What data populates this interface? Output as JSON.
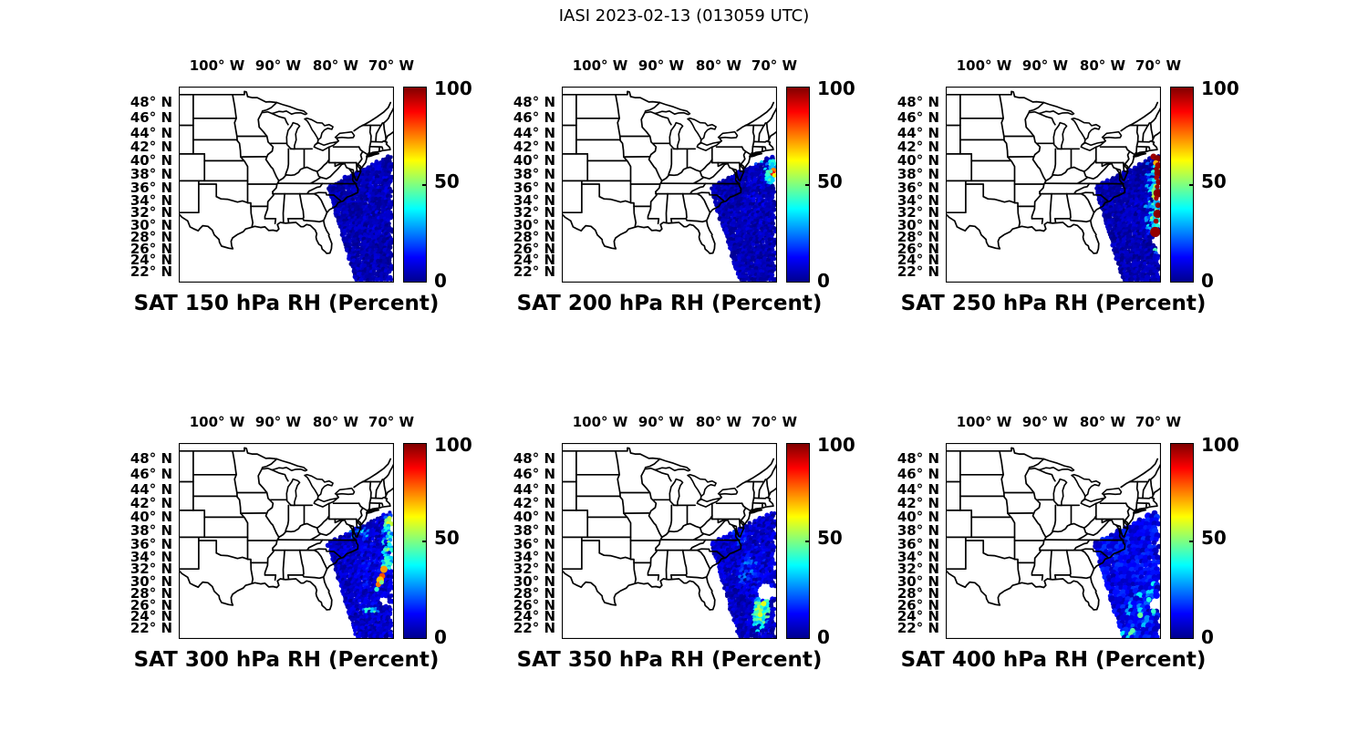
{
  "figure_title": "IASI 2023-02-13 (013059 UTC)",
  "chart_data": {
    "type": "scatter",
    "title": "IASI 2023-02-13 (013059 UTC)",
    "satellite": "IASI",
    "date": "2023-02-13",
    "time_utc": "013059 UTC",
    "variable": "RH",
    "units": "Percent",
    "colormap": "jet",
    "legend_position": "right-colorbar-per-panel",
    "grid": false,
    "colorbar": {
      "min": 0,
      "max": 100,
      "ticks": [
        100,
        50,
        0
      ],
      "tick_labels": [
        "100",
        "50",
        "0"
      ]
    },
    "map": {
      "lon_min": -106.5,
      "lon_max": -69.4,
      "lat_min": 20,
      "lat_max": 50,
      "lon_ticks": [
        -100,
        -90,
        -80,
        -70
      ],
      "lon_tick_labels": [
        "100° W",
        "90° W",
        "80° W",
        "70° W"
      ],
      "lat_ticks": [
        48,
        46,
        44,
        42,
        40,
        38,
        36,
        34,
        32,
        30,
        28,
        26,
        24,
        22
      ],
      "lat_tick_labels": [
        "48° N",
        "46° N",
        "44° N",
        "42° N",
        "40° N",
        "38° N",
        "36° N",
        "34° N",
        "32° N",
        "30° N",
        "28° N",
        "26° N",
        "24° N",
        "22° N"
      ]
    },
    "swath_corners_lonlat": [
      [
        -80.6,
        36.1
      ],
      [
        -69.6,
        40.9
      ],
      [
        -69.7,
        20.0
      ],
      [
        -75.6,
        20.0
      ]
    ],
    "panels": [
      {
        "level_hPa": 150,
        "title": "SAT 150 hPa RH (Percent)",
        "base_range": [
          1,
          9
        ],
        "dot_pitch": 3.2,
        "dot_radius": 2.3,
        "seed": 101,
        "patches": [
          [
            -72.5,
            33,
            2.6,
            6.5,
            6,
            14,
            0.3
          ],
          [
            -70.3,
            37.8,
            0.9,
            0.9,
            8,
            18,
            0.35
          ]
        ],
        "big_dots": [],
        "holes": []
      },
      {
        "level_hPa": 200,
        "title": "SAT 200 hPa RH (Percent)",
        "base_range": [
          1,
          9
        ],
        "dot_pitch": 3.2,
        "dot_radius": 2.3,
        "seed": 102,
        "patches": [
          [
            -70.2,
            38.2,
            1.15,
            1.9,
            28,
            52,
            0.85
          ],
          [
            -70.0,
            38.1,
            0.5,
            0.8,
            55,
            88,
            0.9
          ],
          [
            -71.8,
            39.8,
            1.4,
            0.6,
            18,
            38,
            0.4
          ],
          [
            -73.0,
            33,
            2.6,
            6,
            6,
            13,
            0.3
          ]
        ],
        "big_dots": [
          [
            -69.9,
            38.55,
            3.2,
            75
          ],
          [
            -70.05,
            38.15,
            2.8,
            88
          ],
          [
            -69.75,
            37.85,
            2.4,
            62
          ],
          [
            -70.35,
            38.4,
            2.0,
            45
          ]
        ],
        "holes": []
      },
      {
        "level_hPa": 250,
        "title": "SAT 250 hPa RH (Percent)",
        "base_range": [
          1,
          9
        ],
        "dot_pitch": 3.2,
        "dot_radius": 2.3,
        "seed": 103,
        "patches": [
          [
            -70.1,
            33,
            0.8,
            8.5,
            25,
            65,
            0.75
          ],
          [
            -71.1,
            33.5,
            0.9,
            7.5,
            16,
            42,
            0.45
          ],
          [
            -73.0,
            31,
            2.2,
            5.5,
            5,
            12,
            0.3
          ]
        ],
        "big_dots": [
          [
            -70.6,
            40.6,
            3.4,
            97
          ],
          [
            -69.9,
            40.3,
            4.0,
            99
          ],
          [
            -70.2,
            39.7,
            3.0,
            70
          ],
          [
            -69.75,
            39.3,
            3.6,
            97
          ],
          [
            -70.1,
            38.8,
            2.6,
            98
          ],
          [
            -69.8,
            38.2,
            4.2,
            99
          ],
          [
            -70.05,
            37.5,
            2.8,
            96
          ],
          [
            -69.7,
            36.8,
            3.2,
            98
          ],
          [
            -69.95,
            36.1,
            2.6,
            97
          ],
          [
            -69.85,
            35.1,
            4.8,
            99
          ],
          [
            -70.1,
            34.3,
            2.6,
            96
          ],
          [
            -69.8,
            33.2,
            3.0,
            98
          ],
          [
            -69.9,
            31.8,
            4.6,
            99
          ],
          [
            -70.15,
            30.6,
            2.8,
            97
          ],
          [
            -70.3,
            28.8,
            5.6,
            98
          ]
        ],
        "holes": [
          [
            -69.95,
            27.2,
            0.75,
            1.1
          ]
        ]
      },
      {
        "level_hPa": 300,
        "title": "SAT 300 hPa RH (Percent)",
        "base_range": [
          2,
          12
        ],
        "dot_pitch": 3.2,
        "dot_radius": 2.3,
        "seed": 104,
        "patches": [
          [
            -70.3,
            36.3,
            1.0,
            4.3,
            25,
            55,
            0.8
          ],
          [
            -70.1,
            39.2,
            0.9,
            0.9,
            42,
            65,
            0.8
          ],
          [
            -75.0,
            37.6,
            1.9,
            1.3,
            14,
            38,
            0.5
          ],
          [
            -73.3,
            24.9,
            1.6,
            0.5,
            25,
            50,
            0.7
          ],
          [
            -73.0,
            31,
            3.3,
            6,
            8,
            18,
            0.4
          ],
          [
            -70.6,
            33.0,
            0.8,
            1.5,
            30,
            55,
            0.6
          ]
        ],
        "big_dots": [
          [
            -71.05,
            31.95,
            4.0,
            72
          ],
          [
            -71.35,
            30.85,
            3.4,
            80
          ],
          [
            -71.7,
            30.15,
            4.2,
            68
          ],
          [
            -72.0,
            29.45,
            3.0,
            76
          ],
          [
            -71.45,
            29.8,
            2.5,
            50
          ],
          [
            -72.3,
            28.65,
            2.7,
            42
          ]
        ],
        "holes": [
          [
            -70.95,
            26.6,
            0.85,
            0.85
          ]
        ]
      },
      {
        "level_hPa": 350,
        "title": "SAT 350 hPa RH (Percent)",
        "base_range": [
          2,
          12
        ],
        "dot_pitch": 3.2,
        "dot_radius": 2.3,
        "seed": 105,
        "patches": [
          [
            -71.9,
            24.8,
            1.6,
            2.4,
            32,
            62,
            0.85
          ],
          [
            -72.6,
            21.9,
            1.3,
            1.0,
            25,
            48,
            0.6
          ],
          [
            -74.3,
            31.5,
            1.7,
            2.8,
            12,
            30,
            0.5
          ],
          [
            -75.8,
            36.9,
            1.7,
            1.3,
            10,
            24,
            0.55
          ],
          [
            -72.5,
            31.5,
            2.8,
            5,
            8,
            18,
            0.4
          ]
        ],
        "big_dots": [
          [
            -71.6,
            26.2,
            3.0,
            60
          ],
          [
            -72.2,
            24.3,
            2.8,
            58
          ]
        ],
        "holes": [
          [
            -71.2,
            28.2,
            1.7,
            1.5
          ]
        ]
      },
      {
        "level_hPa": 400,
        "title": "SAT 400 hPa RH (Percent)",
        "base_range": [
          4,
          18
        ],
        "dot_pitch": 4.5,
        "dot_radius": 3.1,
        "seed": 106,
        "patches": [
          [
            -72.6,
            25.3,
            2.6,
            3.0,
            22,
            46,
            0.4
          ],
          [
            -70.9,
            28.6,
            1.2,
            1.5,
            24,
            45,
            0.35
          ],
          [
            -74.6,
            21.3,
            2.2,
            1.1,
            25,
            50,
            0.45
          ],
          [
            -73.2,
            33.8,
            2.8,
            4,
            6,
            16,
            0.5
          ]
        ],
        "big_dots": [
          [
            -72.9,
            24.2,
            3.1,
            48
          ],
          [
            -71.4,
            26.9,
            2.9,
            40
          ],
          [
            -74.2,
            21.5,
            2.9,
            46
          ],
          [
            -70.6,
            24.9,
            2.8,
            42
          ]
        ],
        "holes": [
          [
            -70.4,
            26.4,
            0.9,
            1.1
          ]
        ]
      }
    ]
  }
}
